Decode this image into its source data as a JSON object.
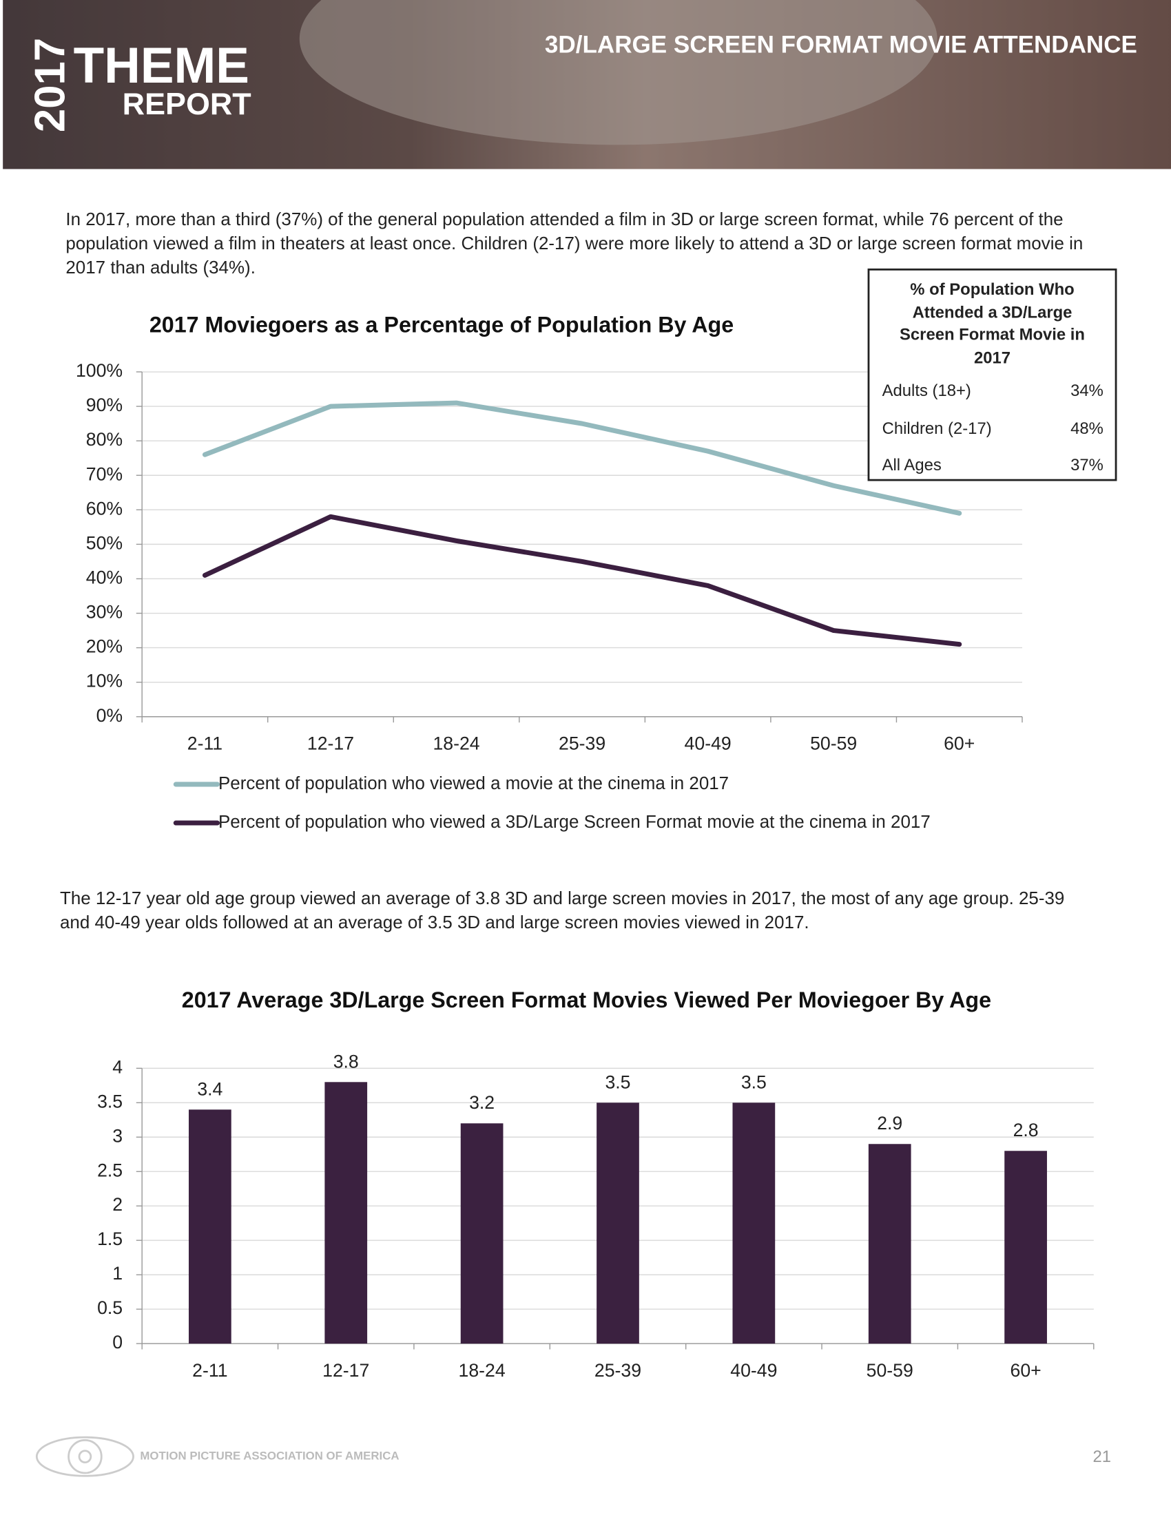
{
  "header": {
    "year": "2017",
    "theme": "THEME",
    "report": "REPORT",
    "title": "3D/LARGE SCREEN FORMAT MOVIE ATTENDANCE"
  },
  "paragraphs": [
    "In 2017, more than a third (37%) of the general population attended a film in 3D or large screen format, while 76 percent of the population viewed a film in theaters at least once. Children (2-17) were more likely to attend a 3D or large screen format movie in 2017 than adults (34%).",
    "The 12-17 year old age group viewed an average of 3.8 3D and large screen movies in 2017, the most of any age group. 25-39 and 40-49 year olds followed at an average of 3.5 3D and large screen movies viewed in 2017."
  ],
  "table": {
    "title": "% of Population Who Attended a 3D/Large Screen Format Movie in 2017",
    "rows": [
      [
        "Adults (18+)",
        "34%"
      ],
      [
        "Children (2-17)",
        "48%"
      ],
      [
        "All Ages",
        "37%"
      ]
    ]
  },
  "chart_data": [
    {
      "type": "line",
      "title": "2017 Moviegoers as a Percentage of Population By Age",
      "categories": [
        "2-11",
        "12-17",
        "18-24",
        "25-39",
        "40-49",
        "50-59",
        "60+"
      ],
      "series": [
        {
          "name": "Percent of population who viewed a movie at the cinema in 2017",
          "color": "#93b9bd",
          "values": [
            76,
            90,
            91,
            85,
            77,
            67,
            59
          ]
        },
        {
          "name": "Percent of population who viewed a 3D/Large Screen Format movie at the cinema in 2017",
          "color": "#3b1f40",
          "values": [
            41,
            58,
            51,
            45,
            38,
            25,
            21
          ]
        }
      ],
      "ylim": [
        0,
        100
      ],
      "yticks": [
        {
          "value": 0,
          "label": "0%"
        },
        {
          "value": 10,
          "label": "10%"
        },
        {
          "value": 20,
          "label": "20%"
        },
        {
          "value": 30,
          "label": "30%"
        },
        {
          "value": 40,
          "label": "40%"
        },
        {
          "value": 50,
          "label": "50%"
        },
        {
          "value": 60,
          "label": "60%"
        },
        {
          "value": 70,
          "label": "70%"
        },
        {
          "value": 80,
          "label": "80%"
        },
        {
          "value": 90,
          "label": "90%"
        },
        {
          "value": 100,
          "label": "100%"
        }
      ],
      "grid": true
    },
    {
      "type": "bar",
      "title": "2017 Average 3D/Large Screen Format Movies Viewed Per Moviegoer By Age",
      "categories": [
        "2-11",
        "12-17",
        "18-24",
        "25-39",
        "40-49",
        "50-59",
        "60+"
      ],
      "values": [
        3.4,
        3.8,
        3.2,
        3.5,
        3.5,
        2.9,
        2.8
      ],
      "color": "#3b2140",
      "ylim": [
        0,
        4
      ],
      "yticks": [
        0,
        0.5,
        1,
        1.5,
        2,
        2.5,
        3,
        3.5,
        4
      ],
      "grid": true
    }
  ],
  "footer": {
    "organization": "MOTION PICTURE ASSOCIATION OF AMERICA",
    "page": "21"
  }
}
